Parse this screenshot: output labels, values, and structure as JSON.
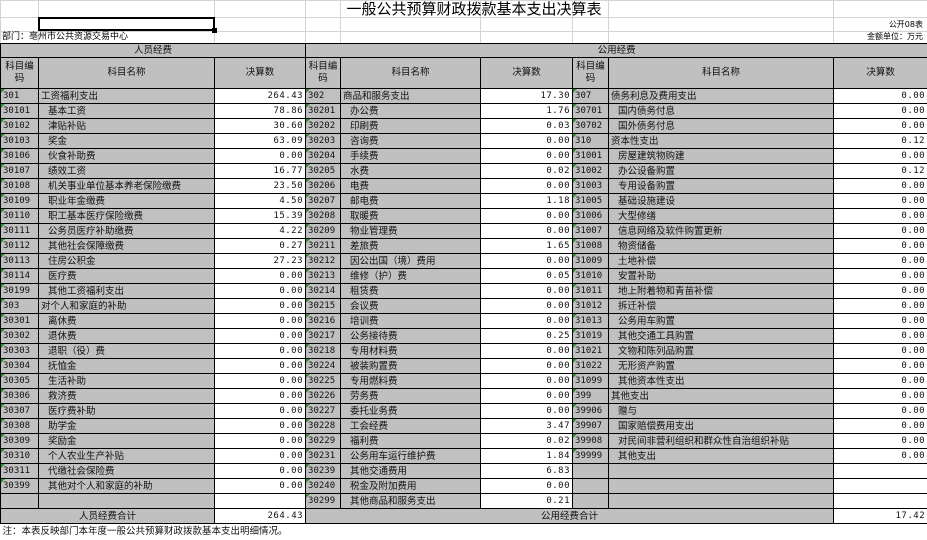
{
  "title": "一般公共预算财政拨款基本支出决算表",
  "department": "部门：亳州市公共资源交易中心",
  "form_no": "公开08表",
  "unit": "金额单位：万元",
  "headers": {
    "personnel": "人员经费",
    "public": "公用经费",
    "code": "科目编码",
    "name": "科目名称",
    "amount": "决算数"
  },
  "personnel_rows": [
    {
      "code": "301",
      "name": "工资福利支出",
      "amount": "264.43",
      "indent": false
    },
    {
      "code": "30101",
      "name": "基本工资",
      "amount": "78.86",
      "indent": true
    },
    {
      "code": "30102",
      "name": "津贴补贴",
      "amount": "30.60",
      "indent": true
    },
    {
      "code": "30103",
      "name": "奖金",
      "amount": "63.09",
      "indent": true
    },
    {
      "code": "30106",
      "name": "伙食补助费",
      "amount": "0.00",
      "indent": true
    },
    {
      "code": "30107",
      "name": "绩效工资",
      "amount": "16.77",
      "indent": true
    },
    {
      "code": "30108",
      "name": "机关事业单位基本养老保险缴费",
      "amount": "23.50",
      "indent": true
    },
    {
      "code": "30109",
      "name": "职业年金缴费",
      "amount": "4.50",
      "indent": true
    },
    {
      "code": "30110",
      "name": "职工基本医疗保险缴费",
      "amount": "15.39",
      "indent": true
    },
    {
      "code": "30111",
      "name": "公务员医疗补助缴费",
      "amount": "4.22",
      "indent": true
    },
    {
      "code": "30112",
      "name": "其他社会保障缴费",
      "amount": "0.27",
      "indent": true
    },
    {
      "code": "30113",
      "name": "住房公积金",
      "amount": "27.23",
      "indent": true
    },
    {
      "code": "30114",
      "name": "医疗费",
      "amount": "0.00",
      "indent": true
    },
    {
      "code": "30199",
      "name": "其他工资福利支出",
      "amount": "0.00",
      "indent": true
    },
    {
      "code": "303",
      "name": "对个人和家庭的补助",
      "amount": "0.00",
      "indent": false
    },
    {
      "code": "30301",
      "name": "离休费",
      "amount": "0.00",
      "indent": true
    },
    {
      "code": "30302",
      "name": "退休费",
      "amount": "0.00",
      "indent": true
    },
    {
      "code": "30303",
      "name": "退职（役）费",
      "amount": "0.00",
      "indent": true
    },
    {
      "code": "30304",
      "name": "抚恤金",
      "amount": "0.00",
      "indent": true
    },
    {
      "code": "30305",
      "name": "生活补助",
      "amount": "0.00",
      "indent": true
    },
    {
      "code": "30306",
      "name": "救济费",
      "amount": "0.00",
      "indent": true
    },
    {
      "code": "30307",
      "name": "医疗费补助",
      "amount": "0.00",
      "indent": true
    },
    {
      "code": "30308",
      "name": "助学金",
      "amount": "0.00",
      "indent": true
    },
    {
      "code": "30309",
      "name": "奖励金",
      "amount": "0.00",
      "indent": true
    },
    {
      "code": "30310",
      "name": "个人农业生产补贴",
      "amount": "0.00",
      "indent": true
    },
    {
      "code": "30311",
      "name": "代缴社会保险费",
      "amount": "0.00",
      "indent": true
    },
    {
      "code": "30399",
      "name": "其他对个人和家庭的补助",
      "amount": "0.00",
      "indent": true
    },
    {
      "code": "",
      "name": "",
      "amount": "",
      "indent": false
    }
  ],
  "public_rows_a": [
    {
      "code": "302",
      "name": "商品和服务支出",
      "amount": "17.30",
      "indent": false
    },
    {
      "code": "30201",
      "name": "办公费",
      "amount": "1.76",
      "indent": true
    },
    {
      "code": "30202",
      "name": "印刷费",
      "amount": "0.03",
      "indent": true
    },
    {
      "code": "30203",
      "name": "咨询费",
      "amount": "0.00",
      "indent": true
    },
    {
      "code": "30204",
      "name": "手续费",
      "amount": "0.00",
      "indent": true
    },
    {
      "code": "30205",
      "name": "水费",
      "amount": "0.02",
      "indent": true
    },
    {
      "code": "30206",
      "name": "电费",
      "amount": "0.00",
      "indent": true
    },
    {
      "code": "30207",
      "name": "邮电费",
      "amount": "1.18",
      "indent": true
    },
    {
      "code": "30208",
      "name": "取暖费",
      "amount": "0.00",
      "indent": true
    },
    {
      "code": "30209",
      "name": "物业管理费",
      "amount": "0.00",
      "indent": true
    },
    {
      "code": "30211",
      "name": "差旅费",
      "amount": "1.65",
      "indent": true
    },
    {
      "code": "30212",
      "name": "因公出国（境）费用",
      "amount": "0.00",
      "indent": true
    },
    {
      "code": "30213",
      "name": "维修（护）费",
      "amount": "0.05",
      "indent": true
    },
    {
      "code": "30214",
      "name": "租赁费",
      "amount": "0.00",
      "indent": true
    },
    {
      "code": "30215",
      "name": "会议费",
      "amount": "0.00",
      "indent": true
    },
    {
      "code": "30216",
      "name": "培训费",
      "amount": "0.00",
      "indent": true
    },
    {
      "code": "30217",
      "name": "公务接待费",
      "amount": "0.25",
      "indent": true
    },
    {
      "code": "30218",
      "name": "专用材料费",
      "amount": "0.00",
      "indent": true
    },
    {
      "code": "30224",
      "name": "被装购置费",
      "amount": "0.00",
      "indent": true
    },
    {
      "code": "30225",
      "name": "专用燃料费",
      "amount": "0.00",
      "indent": true
    },
    {
      "code": "30226",
      "name": "劳务费",
      "amount": "0.00",
      "indent": true
    },
    {
      "code": "30227",
      "name": "委托业务费",
      "amount": "0.00",
      "indent": true
    },
    {
      "code": "30228",
      "name": "工会经费",
      "amount": "3.47",
      "indent": true
    },
    {
      "code": "30229",
      "name": "福利费",
      "amount": "0.02",
      "indent": true
    },
    {
      "code": "30231",
      "name": "公务用车运行维护费",
      "amount": "1.84",
      "indent": true
    },
    {
      "code": "30239",
      "name": "其他交通费用",
      "amount": "6.83",
      "indent": true
    },
    {
      "code": "30240",
      "name": "税金及附加费用",
      "amount": "0.00",
      "indent": true
    },
    {
      "code": "30299",
      "name": "其他商品和服务支出",
      "amount": "0.21",
      "indent": true
    }
  ],
  "public_rows_b": [
    {
      "code": "307",
      "name": "债务利息及费用支出",
      "amount": "0.00",
      "indent": false
    },
    {
      "code": "30701",
      "name": "国内债务付息",
      "amount": "0.00",
      "indent": true
    },
    {
      "code": "30702",
      "name": "国外债务付息",
      "amount": "0.00",
      "indent": true
    },
    {
      "code": "310",
      "name": "资本性支出",
      "amount": "0.12",
      "indent": false
    },
    {
      "code": "31001",
      "name": "房屋建筑物购建",
      "amount": "0.00",
      "indent": true
    },
    {
      "code": "31002",
      "name": "办公设备购置",
      "amount": "0.12",
      "indent": true
    },
    {
      "code": "31003",
      "name": "专用设备购置",
      "amount": "0.00",
      "indent": true
    },
    {
      "code": "31005",
      "name": "基础设施建设",
      "amount": "0.00",
      "indent": true
    },
    {
      "code": "31006",
      "name": "大型修缮",
      "amount": "0.00",
      "indent": true
    },
    {
      "code": "31007",
      "name": "信息网络及软件购置更新",
      "amount": "0.00",
      "indent": true
    },
    {
      "code": "31008",
      "name": "物资储备",
      "amount": "0.00",
      "indent": true
    },
    {
      "code": "31009",
      "name": "土地补偿",
      "amount": "0.00",
      "indent": true
    },
    {
      "code": "31010",
      "name": "安置补助",
      "amount": "0.00",
      "indent": true
    },
    {
      "code": "31011",
      "name": "地上附着物和青苗补偿",
      "amount": "0.00",
      "indent": true
    },
    {
      "code": "31012",
      "name": "拆迁补偿",
      "amount": "0.00",
      "indent": true
    },
    {
      "code": "31013",
      "name": "公务用车购置",
      "amount": "0.00",
      "indent": true
    },
    {
      "code": "31019",
      "name": "其他交通工具购置",
      "amount": "0.00",
      "indent": true
    },
    {
      "code": "31021",
      "name": "文物和陈列品购置",
      "amount": "0.00",
      "indent": true
    },
    {
      "code": "31022",
      "name": "无形资产购置",
      "amount": "0.00",
      "indent": true
    },
    {
      "code": "31099",
      "name": "其他资本性支出",
      "amount": "0.00",
      "indent": true
    },
    {
      "code": "399",
      "name": "其他支出",
      "amount": "0.00",
      "indent": false
    },
    {
      "code": "39906",
      "name": "赠与",
      "amount": "0.00",
      "indent": true
    },
    {
      "code": "39907",
      "name": "国家赔偿费用支出",
      "amount": "0.00",
      "indent": true
    },
    {
      "code": "39908",
      "name": "对民间非营利组织和群众性自治组织补贴",
      "amount": "0.00",
      "indent": true
    },
    {
      "code": "39999",
      "name": "其他支出",
      "amount": "0.00",
      "indent": true
    },
    {
      "code": "",
      "name": "",
      "amount": "",
      "indent": false
    },
    {
      "code": "",
      "name": "",
      "amount": "",
      "indent": false
    },
    {
      "code": "",
      "name": "",
      "amount": "",
      "indent": false
    }
  ],
  "totals": {
    "personnel_label": "人员经费合计",
    "personnel_value": "264.43",
    "public_label": "公用经费合计",
    "public_value": "17.42"
  },
  "note": "注：本表反映部门本年度一般公共预算财政拨款基本支出明细情况。"
}
